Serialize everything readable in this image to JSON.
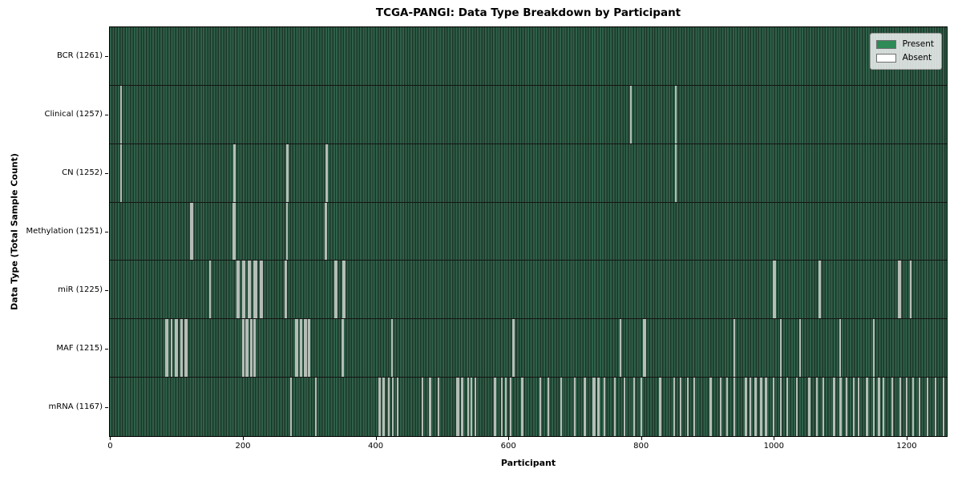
{
  "chart_data": {
    "type": "heatmap",
    "title": "TCGA-PANGI: Data Type Breakdown by Participant",
    "xlabel": "Participant",
    "ylabel": "Data Type (Total Sample Count)",
    "x_ticks": [
      0,
      200,
      400,
      600,
      800,
      1000,
      1200
    ],
    "xlim": [
      -0.5,
      1260.5
    ],
    "n_participants": 1261,
    "grid": false,
    "legend_position": "upper right",
    "legend": [
      {
        "label": "Present",
        "color": "#2e8b57"
      },
      {
        "label": "Absent",
        "color": "#ffffff"
      }
    ],
    "colors": {
      "present": "#2e8b57",
      "absent": "#ffffff",
      "bar_fill": "#30614a",
      "bar_edge": "#1c3628",
      "row_separator": "#141414"
    },
    "rows": [
      {
        "key": "bcr",
        "data_type": "BCR",
        "total": 1261,
        "label": "BCR (1261)",
        "absent": []
      },
      {
        "key": "clinical",
        "data_type": "Clinical",
        "total": 1257,
        "label": "Clinical (1257)",
        "absent": [
          16,
          17,
          785,
          852
        ]
      },
      {
        "key": "cn",
        "data_type": "CN",
        "total": 1252,
        "label": "CN (1252)",
        "absent": [
          16,
          17,
          187,
          188,
          267,
          268,
          326,
          327,
          852
        ]
      },
      {
        "key": "methylation",
        "data_type": "Methylation",
        "total": 1251,
        "label": "Methylation (1251)",
        "absent": [
          122,
          123,
          124,
          186,
          187,
          188,
          266,
          267,
          325,
          326
        ]
      },
      {
        "key": "mir",
        "data_type": "miR",
        "total": 1225,
        "label": "miR (1225)",
        "absent": [
          150,
          151,
          192,
          193,
          194,
          200,
          201,
          202,
          203,
          209,
          210,
          211,
          217,
          218,
          219,
          220,
          227,
          228,
          229,
          264,
          265,
          339,
          340,
          341,
          351,
          352,
          353,
          1000,
          1001,
          1002,
          1069,
          1070,
          1188,
          1189,
          1190,
          1206
        ]
      },
      {
        "key": "maf",
        "data_type": "MAF",
        "total": 1215,
        "label": "MAF (1215)",
        "absent": [
          84,
          85,
          86,
          92,
          93,
          99,
          100,
          101,
          107,
          108,
          113,
          114,
          115,
          200,
          201,
          205,
          206,
          207,
          212,
          213,
          217,
          218,
          280,
          281,
          282,
          287,
          288,
          293,
          294,
          295,
          299,
          300,
          350,
          351,
          425,
          607,
          608,
          769,
          804,
          805,
          806,
          940,
          1010,
          1040,
          1100,
          1150
        ]
      },
      {
        "key": "mrna",
        "data_type": "mRNA",
        "total": 1167,
        "label": "mRNA (1167)",
        "absent": [
          273,
          310,
          405,
          406,
          411,
          412,
          420,
          426,
          433,
          470,
          482,
          483,
          495,
          523,
          524,
          525,
          530,
          531,
          540,
          544,
          550,
          579,
          580,
          590,
          596,
          604,
          620,
          621,
          648,
          660,
          680,
          700,
          715,
          716,
          728,
          729,
          730,
          735,
          736,
          745,
          760,
          775,
          790,
          800,
          828,
          829,
          850,
          860,
          870,
          880,
          904,
          905,
          920,
          930,
          940,
          957,
          958,
          965,
          972,
          973,
          980,
          981,
          988,
          989,
          1000,
          1010,
          1020,
          1035,
          1053,
          1054,
          1065,
          1075,
          1090,
          1091,
          1100,
          1101,
          1110,
          1120,
          1128,
          1140,
          1141,
          1150,
          1158,
          1159,
          1165,
          1178,
          1190,
          1191,
          1200,
          1210,
          1220,
          1232,
          1244,
          1256
        ]
      }
    ]
  }
}
